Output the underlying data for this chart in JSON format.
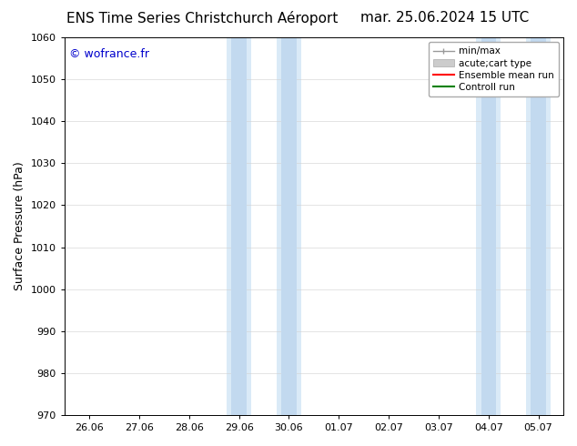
{
  "title_left": "ENS Time Series Christchurch Aéroport",
  "title_right": "mar. 25.06.2024 15 UTC",
  "ylabel": "Surface Pressure (hPa)",
  "ylim": [
    970,
    1060
  ],
  "yticks": [
    970,
    980,
    990,
    1000,
    1010,
    1020,
    1030,
    1040,
    1050,
    1060
  ],
  "x_labels": [
    "26.06",
    "27.06",
    "28.06",
    "29.06",
    "30.06",
    "01.07",
    "02.07",
    "03.07",
    "04.07",
    "05.07"
  ],
  "x_positions": [
    0,
    1,
    2,
    3,
    4,
    5,
    6,
    7,
    8,
    9
  ],
  "band_light_color": "#daeaf7",
  "band_dark_color": "#c2d9ef",
  "bands_light": [
    {
      "xmin": 2.75,
      "xmax": 3.25
    },
    {
      "xmin": 3.75,
      "xmax": 4.25
    },
    {
      "xmin": 7.75,
      "xmax": 8.25
    },
    {
      "xmin": 8.75,
      "xmax": 9.25
    }
  ],
  "bands_dark": [
    {
      "xmin": 2.85,
      "xmax": 3.15
    },
    {
      "xmin": 3.85,
      "xmax": 4.15
    },
    {
      "xmin": 7.85,
      "xmax": 8.15
    },
    {
      "xmin": 8.85,
      "xmax": 9.15
    }
  ],
  "watermark": "© wofrance.fr",
  "watermark_color": "#0000cc",
  "bg_color": "#ffffff",
  "title_fontsize": 11,
  "ylabel_fontsize": 9,
  "tick_fontsize": 8,
  "legend_fontsize": 7.5,
  "legend_min_max_color": "#999999",
  "legend_band_color": "#cccccc",
  "legend_ensemble_color": "#ff0000",
  "legend_control_color": "#008000"
}
